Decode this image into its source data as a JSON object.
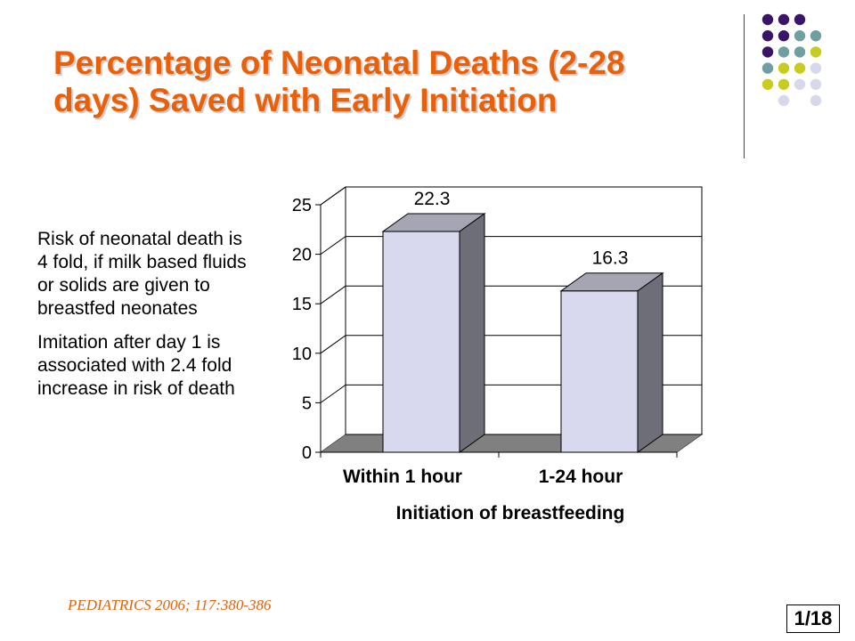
{
  "slide": {
    "title_lines": [
      "Percentage of Neonatal Deaths (2-28",
      "days) Saved with Early Initiation"
    ],
    "bullets": [
      "Risk of neonatal death is 4 fold, if milk based fluids or solids are given to breastfed neonates",
      "Imitation after day 1 is associated with 2.4 fold increase in risk of death"
    ],
    "citation": "PEDIATRICS 2006; 117:380-386",
    "page": "1/18",
    "dot_colors": [
      "#3a1466",
      "#6f9fa0",
      "#c8cc1e",
      "#d8d8ec"
    ]
  },
  "chart_data": {
    "type": "bar",
    "categories": [
      "Within 1 hour",
      "1-24 hour"
    ],
    "values": [
      22.3,
      16.3
    ],
    "data_labels": [
      "22.3",
      "16.3"
    ],
    "xlabel": "Initiation of breastfeeding",
    "ylabel": "",
    "ylim": [
      0,
      25
    ],
    "yticks": [
      0,
      5,
      10,
      15,
      20,
      25
    ],
    "grid": true,
    "three_d": true,
    "colors": {
      "bar_front": "#d8d8ee",
      "bar_top": "#a5a5b4",
      "bar_side": "#6e6e78",
      "floor": "#808080",
      "grid": "#000000"
    }
  }
}
